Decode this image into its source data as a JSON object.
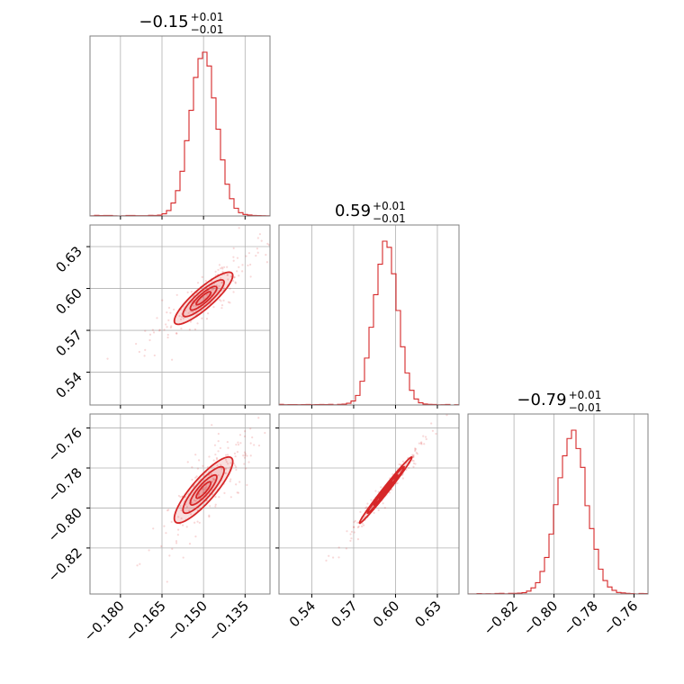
{
  "chart_data": {
    "type": "corner",
    "color": "#d62728",
    "grid": true,
    "parameters": [
      {
        "title_main": "−0.15",
        "title_plus": "+0.01",
        "title_minus": "−0.01",
        "range": [
          -0.191,
          -0.126
        ],
        "ticks": [
          -0.18,
          -0.165,
          -0.15,
          -0.135
        ],
        "tick_labels": [
          "−0.180",
          "−0.165",
          "−0.150",
          "−0.135"
        ],
        "median": -0.15,
        "sigma": 0.0048
      },
      {
        "title_main": "0.59",
        "title_plus": "+0.01",
        "title_minus": "−0.01",
        "range": [
          0.5165,
          0.6455
        ],
        "ticks": [
          0.54,
          0.57,
          0.6,
          0.63
        ],
        "tick_labels": [
          "0.54",
          "0.57",
          "0.60",
          "0.63"
        ],
        "median": 0.593,
        "sigma": 0.0085
      },
      {
        "title_main": "−0.79",
        "title_plus": "+0.01",
        "title_minus": "−0.01",
        "range": [
          -0.843,
          -0.753
        ],
        "ticks": [
          -0.82,
          -0.8,
          -0.78,
          -0.76
        ],
        "tick_labels": [
          "−0.82",
          "−0.80",
          "−0.78",
          "−0.76"
        ],
        "median": -0.791,
        "sigma": 0.0075
      }
    ],
    "correlations": [
      {
        "pair": [
          0,
          1
        ],
        "rho": 0.87
      },
      {
        "pair": [
          0,
          2
        ],
        "rho": 0.86
      },
      {
        "pair": [
          1,
          2
        ],
        "rho": 0.99
      }
    ]
  }
}
